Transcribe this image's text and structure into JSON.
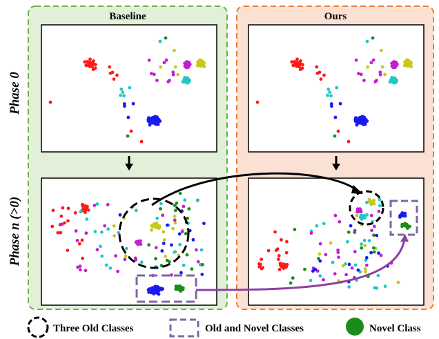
{
  "columns": {
    "baseline": {
      "title": "Baseline",
      "bg": "#e2efd9",
      "border": "#70ad47"
    },
    "ours": {
      "title": "Ours",
      "bg": "#fbe1d4",
      "border": "#ed7d31"
    }
  },
  "rows": {
    "phase0": "Phase 0",
    "phaseN": "Phase n (>0)"
  },
  "legend": {
    "old_classes": "Three Old Classes",
    "old_novel": "Old and Novel Classes",
    "novel": "Novel Class"
  },
  "colors": {
    "red": "#ff1a1a",
    "magenta": "#c21fd1",
    "yellow": "#c8c81a",
    "cyan": "#1fc8c8",
    "blue": "#1a1aee",
    "green": "#1a8c1a",
    "dashed_black": "#000000",
    "dashed_purple": "#8064a2",
    "arrow_purple": "#8e3fa5"
  }
}
